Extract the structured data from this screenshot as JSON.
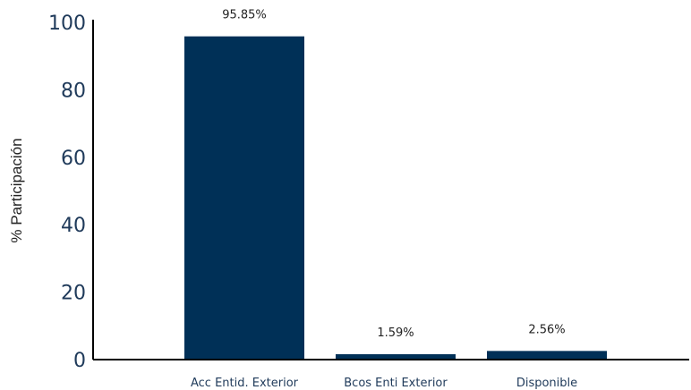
{
  "chart_data": {
    "type": "bar",
    "title": "",
    "xlabel": "",
    "ylabel": "% Participación",
    "categories": [
      "Acc Entid. Exterior",
      "Bcos Enti Exterior",
      "Disponible"
    ],
    "values": [
      95.85,
      1.59,
      2.56
    ],
    "data_labels": [
      "95.85%",
      "1.59%",
      "2.56%"
    ],
    "ylim": [
      0,
      100
    ],
    "yticks": [
      0,
      20,
      40,
      60,
      80,
      100
    ],
    "grid": false,
    "legend": "none",
    "colors": {
      "bar": "#003057",
      "axis": "#000000",
      "tick_text": "#1f3a5a",
      "label_text": "#222222"
    }
  }
}
